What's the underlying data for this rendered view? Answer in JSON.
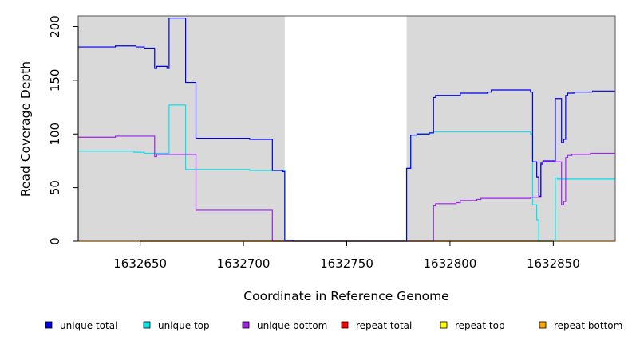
{
  "chart_data": {
    "type": "line",
    "xlabel": "Coordinate in Reference Genome",
    "ylabel": "Read Coverage Depth",
    "xlim": [
      1632620,
      1632880
    ],
    "ylim": [
      0,
      210
    ],
    "x_ticks": [
      1632650,
      1632700,
      1632750,
      1632800,
      1632850
    ],
    "y_ticks": [
      0,
      50,
      100,
      150,
      200
    ],
    "shaded_regions": [
      [
        1632620,
        1632720
      ],
      [
        1632779,
        1632880
      ]
    ],
    "background_color": "#d9d9d9",
    "legend_position": "bottom",
    "series": [
      {
        "name": "unique total",
        "color": "#0000ee",
        "points": [
          [
            1632620,
            181
          ],
          [
            1632638,
            181
          ],
          [
            1632638,
            182
          ],
          [
            1632648,
            182
          ],
          [
            1632648,
            181
          ],
          [
            1632652,
            181
          ],
          [
            1632652,
            180
          ],
          [
            1632657,
            180
          ],
          [
            1632657,
            161
          ],
          [
            1632658,
            161
          ],
          [
            1632658,
            163
          ],
          [
            1632663,
            163
          ],
          [
            1632663,
            161
          ],
          [
            1632664,
            161
          ],
          [
            1632664,
            208
          ],
          [
            1632672,
            208
          ],
          [
            1632672,
            148
          ],
          [
            1632677,
            148
          ],
          [
            1632677,
            96
          ],
          [
            1632703,
            96
          ],
          [
            1632703,
            95
          ],
          [
            1632714,
            95
          ],
          [
            1632714,
            66
          ],
          [
            1632719,
            66
          ],
          [
            1632719,
            65
          ],
          [
            1632720,
            65
          ],
          [
            1632720,
            1
          ],
          [
            1632724,
            1
          ],
          [
            1632724,
            0
          ],
          [
            1632779,
            0
          ],
          [
            1632779,
            68
          ],
          [
            1632781,
            68
          ],
          [
            1632781,
            99
          ],
          [
            1632784,
            99
          ],
          [
            1632784,
            100
          ],
          [
            1632790,
            100
          ],
          [
            1632790,
            101
          ],
          [
            1632792,
            101
          ],
          [
            1632792,
            134
          ],
          [
            1632793,
            134
          ],
          [
            1632793,
            136
          ],
          [
            1632805,
            136
          ],
          [
            1632805,
            138
          ],
          [
            1632818,
            138
          ],
          [
            1632818,
            139
          ],
          [
            1632820,
            139
          ],
          [
            1632820,
            141
          ],
          [
            1632839,
            141
          ],
          [
            1632839,
            139
          ],
          [
            1632840,
            139
          ],
          [
            1632840,
            74
          ],
          [
            1632842,
            74
          ],
          [
            1632842,
            60
          ],
          [
            1632843,
            60
          ],
          [
            1632843,
            42
          ],
          [
            1632844,
            42
          ],
          [
            1632844,
            72
          ],
          [
            1632845,
            72
          ],
          [
            1632845,
            75
          ],
          [
            1632851,
            75
          ],
          [
            1632851,
            133
          ],
          [
            1632854,
            133
          ],
          [
            1632854,
            92
          ],
          [
            1632855,
            92
          ],
          [
            1632855,
            95
          ],
          [
            1632856,
            95
          ],
          [
            1632856,
            136
          ],
          [
            1632857,
            136
          ],
          [
            1632857,
            138
          ],
          [
            1632860,
            138
          ],
          [
            1632860,
            139
          ],
          [
            1632869,
            139
          ],
          [
            1632869,
            140
          ],
          [
            1632880,
            140
          ]
        ]
      },
      {
        "name": "unique top",
        "color": "#00e5ee",
        "points": [
          [
            1632620,
            84
          ],
          [
            1632647,
            84
          ],
          [
            1632647,
            83
          ],
          [
            1632652,
            83
          ],
          [
            1632652,
            82
          ],
          [
            1632664,
            82
          ],
          [
            1632664,
            127
          ],
          [
            1632672,
            127
          ],
          [
            1632672,
            67
          ],
          [
            1632703,
            67
          ],
          [
            1632703,
            66
          ],
          [
            1632720,
            66
          ],
          [
            1632720,
            0
          ],
          [
            1632779,
            0
          ],
          [
            1632779,
            68
          ],
          [
            1632781,
            68
          ],
          [
            1632781,
            99
          ],
          [
            1632784,
            99
          ],
          [
            1632784,
            100
          ],
          [
            1632790,
            100
          ],
          [
            1632790,
            101
          ],
          [
            1632792,
            101
          ],
          [
            1632792,
            102
          ],
          [
            1632839,
            102
          ],
          [
            1632839,
            100
          ],
          [
            1632840,
            100
          ],
          [
            1632840,
            34
          ],
          [
            1632842,
            34
          ],
          [
            1632842,
            20
          ],
          [
            1632843,
            20
          ],
          [
            1632843,
            0
          ],
          [
            1632851,
            0
          ],
          [
            1632851,
            59
          ],
          [
            1632852,
            59
          ],
          [
            1632852,
            58
          ],
          [
            1632880,
            58
          ]
        ]
      },
      {
        "name": "unique bottom",
        "color": "#a020f0",
        "points": [
          [
            1632620,
            97
          ],
          [
            1632638,
            97
          ],
          [
            1632638,
            98
          ],
          [
            1632657,
            98
          ],
          [
            1632657,
            79
          ],
          [
            1632658,
            79
          ],
          [
            1632658,
            81
          ],
          [
            1632677,
            81
          ],
          [
            1632677,
            29
          ],
          [
            1632714,
            29
          ],
          [
            1632714,
            0
          ],
          [
            1632792,
            0
          ],
          [
            1632792,
            33
          ],
          [
            1632793,
            33
          ],
          [
            1632793,
            35
          ],
          [
            1632803,
            35
          ],
          [
            1632803,
            36
          ],
          [
            1632805,
            36
          ],
          [
            1632805,
            38
          ],
          [
            1632813,
            38
          ],
          [
            1632813,
            39
          ],
          [
            1632815,
            39
          ],
          [
            1632815,
            40
          ],
          [
            1632839,
            40
          ],
          [
            1632839,
            41
          ],
          [
            1632844,
            41
          ],
          [
            1632844,
            73
          ],
          [
            1632845,
            73
          ],
          [
            1632845,
            74
          ],
          [
            1632854,
            74
          ],
          [
            1632854,
            34
          ],
          [
            1632855,
            34
          ],
          [
            1632855,
            37
          ],
          [
            1632856,
            37
          ],
          [
            1632856,
            78
          ],
          [
            1632857,
            78
          ],
          [
            1632857,
            80
          ],
          [
            1632859,
            80
          ],
          [
            1632859,
            81
          ],
          [
            1632868,
            81
          ],
          [
            1632868,
            82
          ],
          [
            1632880,
            82
          ]
        ]
      },
      {
        "name": "repeat total",
        "color": "#ff0000",
        "points": [
          [
            1632620,
            0
          ],
          [
            1632880,
            0
          ]
        ]
      },
      {
        "name": "repeat top",
        "color": "#ffff00",
        "points": [
          [
            1632620,
            0
          ],
          [
            1632880,
            0
          ]
        ]
      },
      {
        "name": "repeat bottom",
        "color": "#ffa500",
        "points": [
          [
            1632620,
            0
          ],
          [
            1632880,
            0
          ]
        ]
      }
    ]
  }
}
